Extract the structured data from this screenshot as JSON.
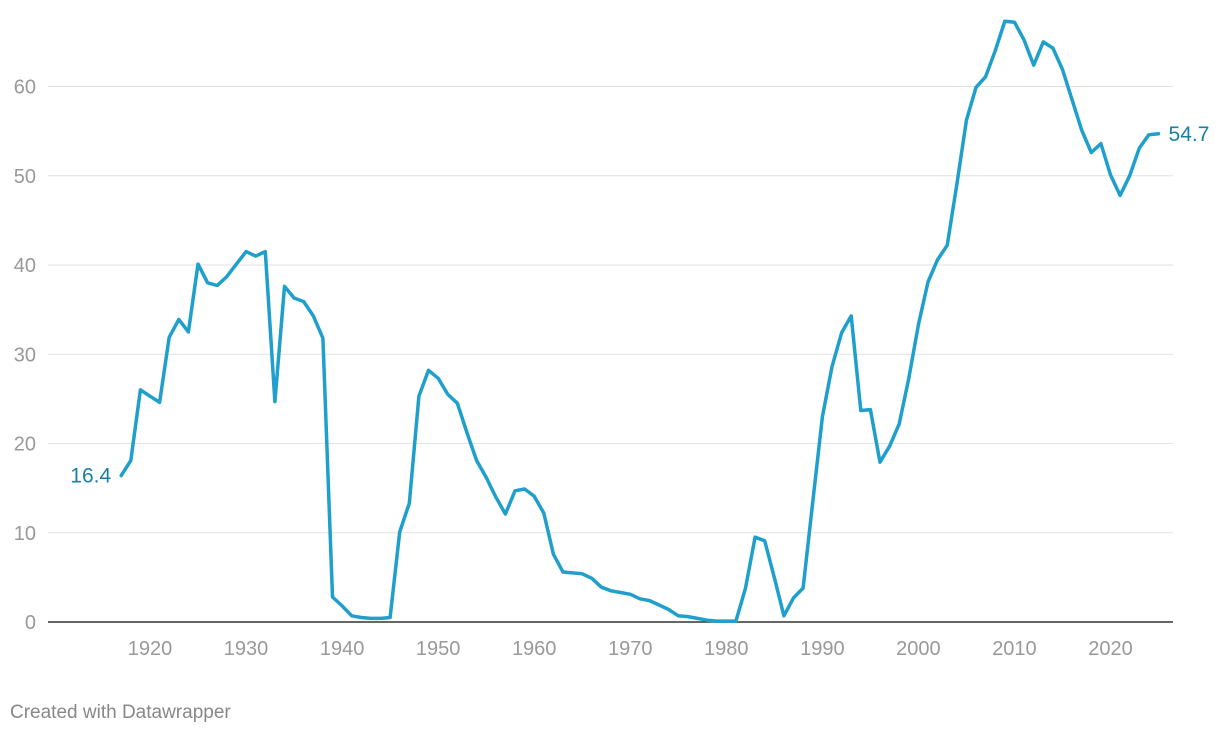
{
  "chart_data": {
    "type": "line",
    "title": "",
    "xlabel": "",
    "ylabel": "",
    "xlim": [
      1910,
      2026
    ],
    "ylim": [
      0,
      67
    ],
    "x_ticks": [
      1920,
      1930,
      1940,
      1950,
      1960,
      1970,
      1980,
      1990,
      2000,
      2010,
      2020
    ],
    "y_ticks": [
      0,
      10,
      20,
      30,
      40,
      50,
      60
    ],
    "grid": "horizontal",
    "legend": "none",
    "colors": {
      "line": "#1f9fcb",
      "label": "#1a7fa3",
      "grid": "#e2e2e2",
      "axis": "#333333",
      "tick": "#999999"
    },
    "series": [
      {
        "x": [
          1917,
          1918,
          1919,
          1920,
          1921,
          1922,
          1923,
          1924,
          1925,
          1926,
          1927,
          1928,
          1929,
          1930,
          1931,
          1932,
          1933,
          1934,
          1935,
          1936,
          1937,
          1938,
          1939,
          1940,
          1941,
          1942,
          1943,
          1944,
          1945,
          1946,
          1947,
          1948,
          1949,
          1950,
          1951,
          1952,
          1953,
          1954,
          1955,
          1956,
          1957,
          1958,
          1959,
          1960,
          1961,
          1962,
          1963,
          1964,
          1965,
          1966,
          1967,
          1968,
          1969,
          1970,
          1971,
          1972,
          1973,
          1974,
          1975,
          1976,
          1977,
          1978,
          1979,
          1980,
          1981,
          1982,
          1983,
          1984,
          1985,
          1986,
          1987,
          1988,
          1989,
          1990,
          1991,
          1992,
          1993,
          1994,
          1995,
          1996,
          1997,
          1998,
          1999,
          2000,
          2001,
          2002,
          2003,
          2004,
          2005,
          2006,
          2007,
          2008,
          2009,
          2010,
          2011,
          2012,
          2013,
          2014,
          2015,
          2016,
          2017,
          2018,
          2019,
          2020,
          2021,
          2022,
          2023,
          2024,
          2025
        ],
        "values": [
          16.4,
          18.1,
          26.0,
          25.3,
          24.6,
          31.9,
          33.9,
          32.5,
          40.1,
          38.0,
          37.7,
          38.7,
          40.1,
          41.5,
          41.0,
          41.5,
          24.7,
          37.6,
          36.3,
          35.9,
          34.3,
          31.8,
          2.8,
          1.8,
          0.7,
          0.5,
          0.4,
          0.4,
          0.5,
          10.1,
          13.3,
          25.3,
          28.2,
          27.3,
          25.5,
          24.5,
          21.2,
          18.1,
          16.2,
          14.0,
          12.1,
          14.7,
          14.9,
          14.1,
          12.2,
          7.6,
          5.6,
          5.5,
          5.4,
          4.9,
          3.9,
          3.5,
          3.3,
          3.1,
          2.6,
          2.4,
          1.9,
          1.4,
          0.7,
          0.6,
          0.4,
          0.2,
          0.1,
          0.1,
          0.1,
          3.8,
          9.5,
          9.1,
          5.0,
          0.7,
          2.7,
          3.8,
          13.4,
          23.0,
          28.6,
          32.4,
          34.3,
          23.7,
          23.8,
          17.9,
          19.7,
          22.2,
          27.3,
          33.3,
          38.1,
          40.6,
          42.2,
          49.0,
          56.2,
          59.9,
          61.1,
          64.0,
          67.3,
          67.2,
          65.2,
          62.4,
          65.0,
          64.3,
          61.9,
          58.5,
          55.1,
          52.6,
          53.6,
          50.1,
          47.8,
          50.0,
          53.1,
          54.6,
          54.7
        ]
      }
    ],
    "annotations": {
      "start_label": "16.4",
      "end_label": "54.7"
    }
  },
  "footer": {
    "credit": "Created with Datawrapper"
  }
}
